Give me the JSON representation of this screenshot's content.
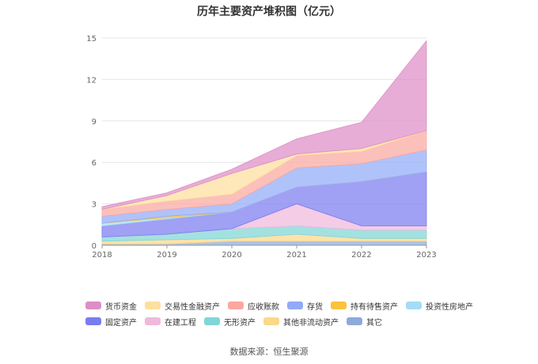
{
  "chart_data": {
    "type": "area",
    "stacked": true,
    "title": "历年主要资产堆积图（亿元）",
    "xlabel": "",
    "ylabel": "",
    "categories": [
      "2018",
      "2019",
      "2020",
      "2021",
      "2022",
      "2023"
    ],
    "ylim": [
      0,
      15
    ],
    "yticks": [
      "0",
      "3",
      "6",
      "9",
      "12",
      "15"
    ],
    "grid": true,
    "legend_position": "bottom",
    "series": [
      {
        "name": "其它",
        "color": "#8eaadb",
        "values": [
          0.1,
          0.1,
          0.3,
          0.3,
          0.3,
          0.3
        ]
      },
      {
        "name": "其他非流动资产",
        "color": "#fbd88a",
        "values": [
          0.2,
          0.3,
          0.2,
          0.5,
          0.2,
          0.2
        ]
      },
      {
        "name": "无形资产",
        "color": "#80d6d6",
        "values": [
          0.3,
          0.4,
          0.7,
          0.6,
          0.6,
          0.6
        ]
      },
      {
        "name": "在建工程",
        "color": "#f0b8dc",
        "values": [
          0,
          0,
          0,
          1.6,
          0.3,
          0.3
        ]
      },
      {
        "name": "固定资产",
        "color": "#7b7bf0",
        "values": [
          0.8,
          1.1,
          1.2,
          1.2,
          3.2,
          3.9
        ]
      },
      {
        "name": "投资性房地产",
        "color": "#a6dcf5",
        "values": [
          0.2,
          0.1,
          0,
          0,
          0,
          0
        ]
      },
      {
        "name": "持有待售资产",
        "color": "#f9c33e",
        "values": [
          0,
          0.1,
          0,
          0,
          0,
          0
        ]
      },
      {
        "name": "存货",
        "color": "#92aaf8",
        "values": [
          0.5,
          0.5,
          0.6,
          1.4,
          1.3,
          1.6
        ]
      },
      {
        "name": "应收账款",
        "color": "#fba8a0",
        "values": [
          0.5,
          0.6,
          0.7,
          0.9,
          0.9,
          1.4
        ]
      },
      {
        "name": "交易性金融资产",
        "color": "#fddf9e",
        "values": [
          0,
          0.4,
          1.5,
          0.1,
          0.2,
          0
        ]
      },
      {
        "name": "货币资金",
        "color": "#de8ec6",
        "values": [
          0.2,
          0.2,
          0.3,
          1.1,
          1.9,
          6.5
        ]
      }
    ]
  },
  "legend": {
    "row1": [
      {
        "label": "货币资金",
        "color": "#de8ec6"
      },
      {
        "label": "交易性金融资产",
        "color": "#fddf9e"
      },
      {
        "label": "应收账款",
        "color": "#fba8a0"
      },
      {
        "label": "存货",
        "color": "#92aaf8"
      },
      {
        "label": "持有待售资产",
        "color": "#f9c33e"
      },
      {
        "label": "投资性房地产",
        "color": "#a6dcf5"
      }
    ],
    "row2": [
      {
        "label": "固定资产",
        "color": "#7b7bf0"
      },
      {
        "label": "在建工程",
        "color": "#f0b8dc"
      },
      {
        "label": "无形资产",
        "color": "#80d6d6"
      },
      {
        "label": "其他非流动资产",
        "color": "#fbd88a"
      },
      {
        "label": "其它",
        "color": "#8eaadb"
      }
    ]
  },
  "source": "数据来源：恒生聚源"
}
